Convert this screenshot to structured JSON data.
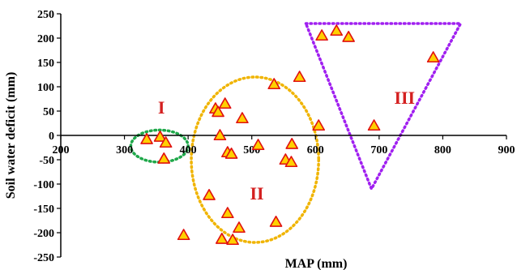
{
  "chart_data": {
    "type": "scatter",
    "xlabel": "MAP (mm)",
    "ylabel": "Soil water deficit (mm)",
    "xlim": [
      200,
      900
    ],
    "ylim": [
      -250,
      250
    ],
    "xticks": [
      200,
      300,
      400,
      500,
      600,
      700,
      800,
      900
    ],
    "yticks": [
      250,
      200,
      150,
      100,
      50,
      0,
      -50,
      -100,
      -150,
      -200,
      -250
    ],
    "grid": false,
    "marker": "triangle",
    "marker_fill": "#ffd000",
    "marker_edge": "#e01010",
    "points": [
      {
        "x": 335,
        "y": -8
      },
      {
        "x": 356,
        "y": -3
      },
      {
        "x": 365,
        "y": -15
      },
      {
        "x": 362,
        "y": -48
      },
      {
        "x": 393,
        "y": -205
      },
      {
        "x": 433,
        "y": -123
      },
      {
        "x": 443,
        "y": 55
      },
      {
        "x": 447,
        "y": 48
      },
      {
        "x": 450,
        "y": 0
      },
      {
        "x": 458,
        "y": 65
      },
      {
        "x": 462,
        "y": -35
      },
      {
        "x": 468,
        "y": -38
      },
      {
        "x": 462,
        "y": -160
      },
      {
        "x": 453,
        "y": -213
      },
      {
        "x": 470,
        "y": -215
      },
      {
        "x": 480,
        "y": -190
      },
      {
        "x": 485,
        "y": 35
      },
      {
        "x": 510,
        "y": -20
      },
      {
        "x": 535,
        "y": 105
      },
      {
        "x": 538,
        "y": -178
      },
      {
        "x": 553,
        "y": -50
      },
      {
        "x": 562,
        "y": -55
      },
      {
        "x": 563,
        "y": -18
      },
      {
        "x": 575,
        "y": 120
      },
      {
        "x": 605,
        "y": 20
      },
      {
        "x": 610,
        "y": 205
      },
      {
        "x": 633,
        "y": 215
      },
      {
        "x": 652,
        "y": 202
      },
      {
        "x": 692,
        "y": 20
      },
      {
        "x": 785,
        "y": 160
      }
    ],
    "annotations": [
      {
        "label": "I",
        "x": 358,
        "y": 58,
        "color": "#d42020"
      },
      {
        "label": "II",
        "x": 508,
        "y": -118,
        "color": "#d42020"
      },
      {
        "label": "III",
        "x": 740,
        "y": 78,
        "color": "#d42020"
      }
    ],
    "groups": [
      {
        "shape": "circle",
        "color": "#1fa84a",
        "style": "dotted",
        "cx": 355,
        "cy": -22,
        "rx": 45,
        "ry": 33
      },
      {
        "shape": "ellipse",
        "color": "#f0b400",
        "style": "dotted",
        "cx": 505,
        "cy": -50,
        "rx": 100,
        "ry": 170
      },
      {
        "shape": "triangle",
        "color": "#a020f0",
        "style": "dotted",
        "vertices": [
          [
            585,
            230
          ],
          [
            828,
            230
          ],
          [
            688,
            -110
          ]
        ]
      }
    ]
  }
}
